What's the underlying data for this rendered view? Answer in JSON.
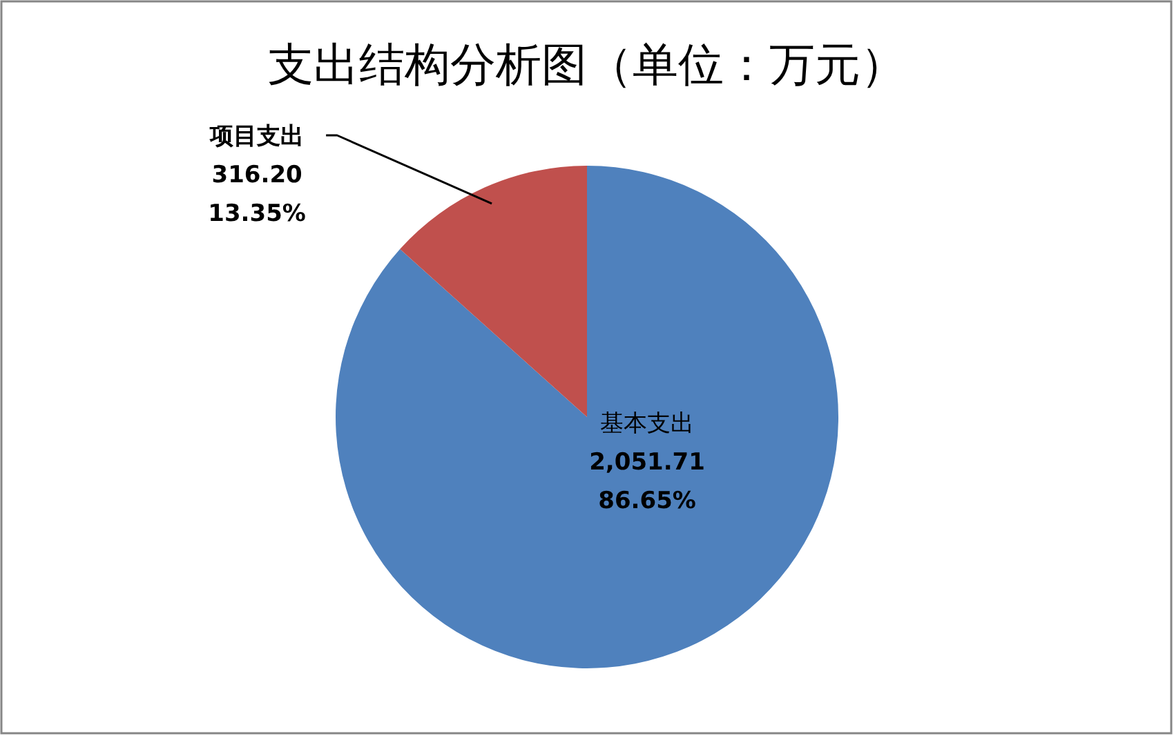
{
  "chart_data": {
    "type": "pie",
    "title": "支出结构分析图（单位：万元）",
    "categories": [
      "基本支出",
      "项目支出"
    ],
    "values": [
      2051.71,
      316.2
    ],
    "colors": [
      "#4f81bd",
      "#c0504d"
    ],
    "value_labels": [
      "2,051.71\n86.65%",
      "316.20\n13.35%"
    ]
  }
}
